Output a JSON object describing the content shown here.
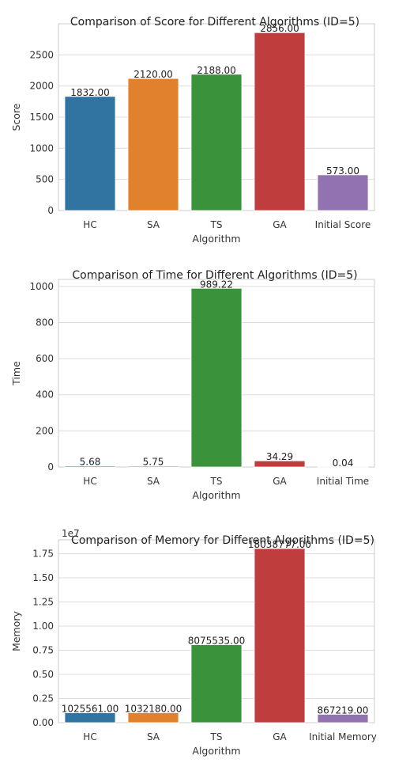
{
  "chart_data": [
    {
      "type": "bar",
      "title": "Comparison of Score for Different Algorithms (ID=5)",
      "xlabel": "Algorithm",
      "ylabel": "Score",
      "categories": [
        "HC",
        "SA",
        "TS",
        "GA",
        "Initial Score"
      ],
      "values": [
        1832.0,
        2120.0,
        2188.0,
        2856.0,
        573.0
      ],
      "value_labels": [
        "1832.00",
        "2120.00",
        "2188.00",
        "2856.00",
        "573.00"
      ],
      "ylim": [
        0,
        2998.8
      ],
      "yticks": [
        0,
        500,
        1000,
        1500,
        2000,
        2500
      ],
      "ytick_labels": [
        "0",
        "500",
        "1000",
        "1500",
        "2000",
        "2500"
      ],
      "offset_text": "",
      "colors": [
        "#3274a1",
        "#e1812c",
        "#3a923a",
        "#c03d3e",
        "#9372b2"
      ],
      "grid": true
    },
    {
      "type": "bar",
      "title": "Comparison of Time for Different Algorithms (ID=5)",
      "xlabel": "Algorithm",
      "ylabel": "Time",
      "categories": [
        "HC",
        "SA",
        "TS",
        "GA",
        "Initial Time"
      ],
      "values": [
        5.68,
        5.75,
        989.22,
        34.29,
        0.04
      ],
      "value_labels": [
        "5.68",
        "5.75",
        "989.22",
        "34.29",
        "0.04"
      ],
      "ylim": [
        0,
        1038.7
      ],
      "yticks": [
        0,
        200,
        400,
        600,
        800,
        1000
      ],
      "ytick_labels": [
        "0",
        "200",
        "400",
        "600",
        "800",
        "1000"
      ],
      "offset_text": "",
      "colors": [
        "#3274a1",
        "#e1812c",
        "#3a923a",
        "#c03d3e",
        "#9372b2"
      ],
      "grid": true
    },
    {
      "type": "bar",
      "title": "Comparison of Memory for Different Algorithms (ID=5)",
      "xlabel": "Algorithm",
      "ylabel": "Memory",
      "categories": [
        "HC",
        "SA",
        "TS",
        "GA",
        "Initial Memory"
      ],
      "values": [
        1025561.0,
        1032180.0,
        8075535.0,
        18038777.0,
        867219.0
      ],
      "value_labels": [
        "1025561.00",
        "1032180.00",
        "8075535.00",
        "18038777.00",
        "867219.00"
      ],
      "ylim": [
        0,
        18940715
      ],
      "yticks": [
        0,
        2500000,
        5000000,
        7500000,
        10000000,
        12500000,
        15000000,
        17500000
      ],
      "ytick_labels": [
        "0.00",
        "0.25",
        "0.50",
        "0.75",
        "1.00",
        "1.25",
        "1.50",
        "1.75"
      ],
      "offset_text": "1e7",
      "colors": [
        "#3274a1",
        "#e1812c",
        "#3a923a",
        "#c03d3e",
        "#9372b2"
      ],
      "grid": true
    }
  ]
}
